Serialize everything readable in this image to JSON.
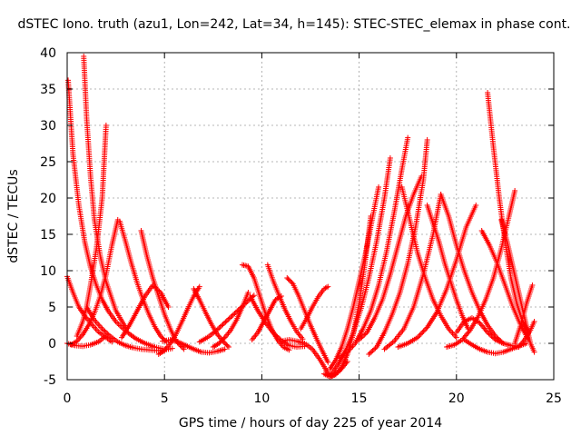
{
  "chart_data": {
    "type": "scatter",
    "title": "dSTEC Iono. truth (azu1, Lon=242, Lat=34, h=145): STEC-STEC_elemax in phase cont.",
    "xlabel": "GPS time / hours of day 225 of year 2014",
    "ylabel": "dSTEC  / TECUs",
    "xlim": [
      0,
      25
    ],
    "ylim": [
      -5,
      40
    ],
    "xticks": [
      "0",
      "5",
      "10",
      "15",
      "20",
      "25"
    ],
    "yticks": [
      "-5",
      "0",
      "5",
      "10",
      "15",
      "20",
      "25",
      "30",
      "35",
      "40"
    ],
    "grid": true,
    "marker": "+",
    "color": "#ff0000",
    "series": [
      {
        "x": [
          0.0,
          0.3,
          0.6,
          0.9,
          1.2,
          1.6,
          2.0,
          2.3
        ],
        "y": [
          9.2,
          7.0,
          5.0,
          3.8,
          2.8,
          1.6,
          0.8,
          0.2
        ]
      },
      {
        "x": [
          0.0,
          0.4,
          0.8,
          1.2,
          1.6,
          2.0
        ],
        "y": [
          0.0,
          -0.3,
          -0.4,
          -0.2,
          0.2,
          1.0
        ]
      },
      {
        "x": [
          0.05,
          0.3,
          0.6,
          0.9,
          1.2,
          1.5,
          1.8,
          2.1,
          2.5,
          3.0,
          3.5,
          4.0,
          4.5,
          5.0
        ],
        "y": [
          36.2,
          26.0,
          19.0,
          14.0,
          10.5,
          8.0,
          6.0,
          4.5,
          3.0,
          1.7,
          0.7,
          0.0,
          -0.5,
          -0.8
        ]
      },
      {
        "x": [
          0.5,
          0.8,
          1.0,
          1.2,
          1.5,
          1.8,
          2.0
        ],
        "y": [
          1.0,
          3.0,
          5.0,
          8.0,
          13.0,
          20.0,
          30.0
        ]
      },
      {
        "x": [
          0.85,
          1.0,
          1.2,
          1.4,
          1.7,
          2.0,
          2.5,
          3.0
        ],
        "y": [
          39.5,
          31.0,
          23.0,
          17.0,
          12.0,
          8.5,
          4.5,
          2.2
        ]
      },
      {
        "x": [
          0.2,
          0.5,
          0.8,
          1.1,
          1.4,
          1.7,
          2.0,
          2.3,
          2.6
        ],
        "y": [
          -0.2,
          0.3,
          1.2,
          2.5,
          4.2,
          6.5,
          9.5,
          13.5,
          17.0
        ]
      },
      {
        "x": [
          1.0,
          1.4,
          1.8,
          2.2,
          2.6,
          3.0,
          3.4,
          3.8,
          4.2,
          4.6,
          5.0,
          5.4
        ],
        "y": [
          5.0,
          3.2,
          2.0,
          1.0,
          0.2,
          -0.3,
          -0.6,
          -0.8,
          -0.9,
          -1.0,
          -0.9,
          -0.7
        ]
      },
      {
        "x": [
          2.7,
          3.0,
          3.3,
          3.6,
          3.9,
          4.2,
          4.5,
          4.8,
          5.1
        ],
        "y": [
          16.8,
          14.0,
          11.0,
          8.3,
          6.0,
          4.0,
          2.3,
          1.0,
          0.2
        ]
      },
      {
        "x": [
          2.8,
          3.2,
          3.6,
          4.0,
          4.4,
          4.8,
          5.2
        ],
        "y": [
          0.8,
          2.5,
          4.5,
          6.5,
          8.0,
          7.0,
          5.0
        ]
      },
      {
        "x": [
          3.8,
          4.1,
          4.4,
          4.7,
          5.0,
          5.3,
          5.6,
          6.0
        ],
        "y": [
          15.5,
          12.0,
          9.0,
          6.5,
          4.0,
          2.0,
          0.3,
          -0.8
        ]
      },
      {
        "x": [
          4.7,
          5.0,
          5.3,
          5.6,
          5.9,
          6.2,
          6.5,
          6.8
        ],
        "y": [
          -1.5,
          -1.0,
          0.0,
          1.3,
          3.0,
          4.8,
          6.5,
          7.8
        ]
      },
      {
        "x": [
          4.9,
          5.3,
          5.7,
          6.1,
          6.5,
          6.9,
          7.3,
          7.7,
          8.1
        ],
        "y": [
          0.3,
          0.5,
          0.2,
          -0.3,
          -0.8,
          -1.2,
          -1.3,
          -1.1,
          -0.8
        ]
      },
      {
        "x": [
          6.5,
          6.8,
          7.1,
          7.4,
          7.7,
          8.0,
          8.3
        ],
        "y": [
          7.5,
          6.0,
          4.3,
          2.7,
          1.3,
          0.3,
          -0.5
        ]
      },
      {
        "x": [
          6.8,
          7.2,
          7.6,
          8.0,
          8.4,
          8.8,
          9.2,
          9.6
        ],
        "y": [
          0.2,
          0.8,
          1.6,
          2.6,
          3.6,
          4.6,
          5.6,
          6.6
        ]
      },
      {
        "x": [
          7.5,
          7.8,
          8.1,
          8.4,
          8.7,
          9.0,
          9.3
        ],
        "y": [
          -0.5,
          0.0,
          0.8,
          1.8,
          3.2,
          5.0,
          7.0
        ]
      },
      {
        "x": [
          9.0,
          9.3,
          9.6,
          9.9,
          10.2,
          10.5,
          10.8,
          11.1,
          11.4
        ],
        "y": [
          10.8,
          10.6,
          9.0,
          6.5,
          4.0,
          2.0,
          0.5,
          -0.5,
          -0.9
        ]
      },
      {
        "x": [
          9.4,
          9.8,
          10.2,
          10.6,
          11.0,
          11.4,
          11.8,
          12.2
        ],
        "y": [
          6.5,
          4.5,
          2.8,
          1.4,
          0.4,
          -0.3,
          -0.5,
          -0.4
        ]
      },
      {
        "x": [
          10.3,
          10.6,
          10.9,
          11.2,
          11.5,
          11.8,
          12.1
        ],
        "y": [
          10.8,
          8.5,
          6.5,
          4.6,
          3.0,
          1.6,
          0.6
        ]
      },
      {
        "x": [
          9.5,
          9.8,
          10.1,
          10.4,
          10.7,
          11.0
        ],
        "y": [
          0.5,
          1.5,
          3.0,
          4.5,
          6.0,
          6.5
        ]
      },
      {
        "x": [
          11.3,
          11.6,
          11.9,
          12.2,
          12.5,
          12.8,
          13.1,
          13.4
        ],
        "y": [
          9.0,
          8.2,
          6.5,
          4.5,
          2.5,
          0.7,
          -1.0,
          -2.6
        ]
      },
      {
        "x": [
          11.0,
          11.4,
          11.8,
          12.2,
          12.6,
          13.0,
          13.4,
          13.6,
          14.0,
          14.4
        ],
        "y": [
          0.3,
          0.5,
          0.3,
          0.0,
          -0.8,
          -2.3,
          -4.1,
          -4.5,
          -3.8,
          -2.5
        ]
      },
      {
        "x": [
          12.0,
          12.3,
          12.6,
          12.9,
          13.2,
          13.4
        ],
        "y": [
          2.0,
          3.4,
          5.0,
          6.4,
          7.5,
          7.8
        ]
      },
      {
        "x": [
          13.2,
          13.5,
          13.8,
          14.1,
          14.4,
          14.7,
          15.0,
          15.3,
          15.6
        ],
        "y": [
          -4.2,
          -4.6,
          -4.3,
          -3.3,
          -1.5,
          1.3,
          5.5,
          11.0,
          17.5
        ]
      },
      {
        "x": [
          13.5,
          13.9,
          14.3,
          14.7,
          15.1,
          15.5,
          15.9,
          16.3,
          16.6
        ],
        "y": [
          -4.5,
          -3.0,
          -1.0,
          1.5,
          4.8,
          9.0,
          14.0,
          20.0,
          25.5
        ]
      },
      {
        "x": [
          13.5,
          13.8,
          14.1,
          14.4,
          14.7,
          15.0,
          15.3,
          15.7,
          16.0
        ],
        "y": [
          -3.5,
          -2.3,
          -0.5,
          2.0,
          5.0,
          8.5,
          12.0,
          17.5,
          21.5
        ]
      },
      {
        "x": [
          14.0,
          14.4,
          14.8,
          15.2,
          15.6,
          16.0,
          16.4,
          16.8,
          17.2,
          17.5
        ],
        "y": [
          -2.0,
          -1.2,
          0.0,
          2.0,
          4.5,
          8.0,
          12.5,
          18.0,
          24.0,
          28.3
        ]
      },
      {
        "x": [
          15.0,
          15.4,
          15.8,
          16.2,
          16.6,
          17.0,
          17.4,
          17.8,
          18.2
        ],
        "y": [
          0.5,
          1.5,
          3.5,
          6.0,
          9.5,
          13.5,
          17.5,
          20.5,
          23.0
        ]
      },
      {
        "x": [
          15.5,
          15.9,
          16.3,
          16.7,
          17.1,
          17.5,
          17.9,
          18.3,
          18.5
        ],
        "y": [
          -1.5,
          -0.5,
          1.5,
          4.0,
          7.0,
          11.0,
          16.0,
          22.5,
          28.0
        ]
      },
      {
        "x": [
          16.3,
          16.8,
          17.3,
          17.8,
          18.3,
          18.8,
          19.2
        ],
        "y": [
          -0.8,
          0.3,
          2.0,
          5.0,
          9.5,
          15.0,
          20.5
        ]
      },
      {
        "x": [
          17.0,
          17.5,
          18.0,
          18.5,
          19.0,
          19.5,
          20.0,
          20.5,
          21.0
        ],
        "y": [
          -0.5,
          0.0,
          0.8,
          2.2,
          4.3,
          7.5,
          11.5,
          16.0,
          19.0
        ]
      },
      {
        "x": [
          17.2,
          17.6,
          18.0,
          18.4,
          18.8,
          19.2,
          19.6,
          20.0
        ],
        "y": [
          21.5,
          17.0,
          12.5,
          9.0,
          6.0,
          3.8,
          2.0,
          0.8
        ]
      },
      {
        "x": [
          18.5,
          18.8,
          19.1,
          19.4,
          19.7,
          20.0,
          20.3,
          20.6
        ],
        "y": [
          19.0,
          16.5,
          14.0,
          11.0,
          8.5,
          6.0,
          3.8,
          2.0
        ]
      },
      {
        "x": [
          19.2,
          19.6,
          20.0,
          20.4,
          20.8,
          21.2,
          21.6,
          22.0,
          22.4
        ],
        "y": [
          20.5,
          17.5,
          13.5,
          10.0,
          7.0,
          4.5,
          2.5,
          1.0,
          0.0
        ]
      },
      {
        "x": [
          19.5,
          19.9,
          20.3,
          20.7,
          21.1,
          21.5,
          21.9,
          22.3,
          22.7,
          23.0
        ],
        "y": [
          -0.5,
          -0.2,
          0.5,
          1.8,
          3.6,
          6.0,
          9.0,
          13.0,
          17.5,
          21.0
        ]
      },
      {
        "x": [
          20.0,
          20.4,
          20.8,
          21.2,
          21.6,
          22.0,
          22.4,
          22.8,
          23.2
        ],
        "y": [
          1.5,
          3.0,
          3.5,
          2.8,
          1.5,
          0.5,
          0.0,
          -0.3,
          -0.5
        ]
      },
      {
        "x": [
          20.4,
          20.8,
          21.2,
          21.6,
          22.0,
          22.4,
          22.8,
          23.2,
          23.6
        ],
        "y": [
          0.5,
          -0.2,
          -0.8,
          -1.2,
          -1.4,
          -1.2,
          -0.8,
          -0.4,
          0.0
        ]
      },
      {
        "x": [
          21.6,
          21.9,
          22.2,
          22.5,
          22.8,
          23.1,
          23.4,
          23.7
        ],
        "y": [
          34.5,
          27.0,
          20.0,
          14.0,
          9.0,
          5.5,
          3.0,
          1.5
        ]
      },
      {
        "x": [
          21.3,
          21.7,
          22.1,
          22.5,
          22.9,
          23.3,
          23.7
        ],
        "y": [
          15.5,
          13.5,
          11.0,
          8.0,
          5.0,
          2.5,
          0.5
        ]
      },
      {
        "x": [
          22.3,
          22.6,
          22.9,
          23.2,
          23.5,
          23.8,
          24.0
        ],
        "y": [
          17.0,
          14.0,
          10.5,
          7.0,
          3.5,
          0.0,
          -1.2
        ]
      },
      {
        "x": [
          23.0,
          23.3,
          23.6,
          23.9
        ],
        "y": [
          0.0,
          2.5,
          5.5,
          8.0
        ]
      },
      {
        "x": [
          23.2,
          23.5,
          23.8,
          24.0
        ],
        "y": [
          -0.5,
          0.5,
          1.8,
          3.0
        ]
      }
    ]
  }
}
